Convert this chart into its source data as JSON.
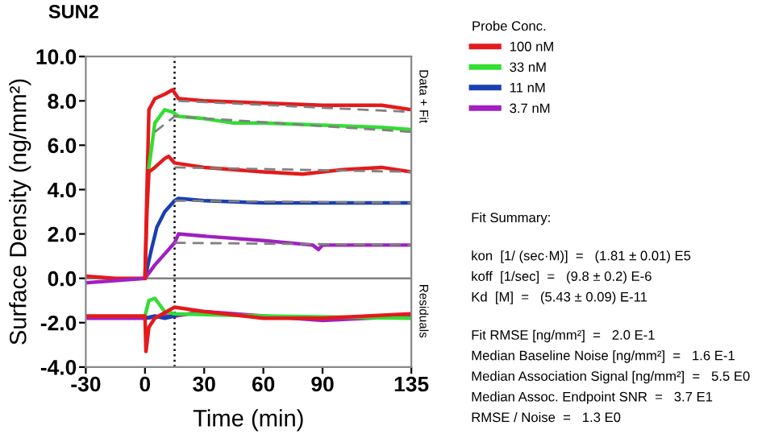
{
  "chart_data": {
    "type": "line",
    "title": "SUN2",
    "xlabel": "Time (min)",
    "ylabel": "Surface Density (ng/mm²)",
    "legend_title": "Probe Conc.",
    "legend": "right",
    "xlim": [
      -30,
      135
    ],
    "xticks": [
      -30,
      0,
      30,
      60,
      90,
      135
    ],
    "ylim": [
      -4,
      10
    ],
    "yticks": [
      {
        "value": -4,
        "label": "-4.0"
      },
      {
        "value": -2,
        "label": "-2.0"
      },
      {
        "value": 0,
        "label": "0.0"
      },
      {
        "value": 2,
        "label": "2.0"
      },
      {
        "value": 4,
        "label": "4.0"
      },
      {
        "value": 6,
        "label": "6.0"
      },
      {
        "value": 8,
        "label": "8.0"
      },
      {
        "value": 10,
        "label": "10.0"
      }
    ],
    "grid": false,
    "marker": "none",
    "ref_lines": [
      {
        "axis": "x",
        "value": 15,
        "color": "#000000",
        "line_style": "dotted"
      },
      {
        "axis": "y",
        "value": 0,
        "color": "#808080",
        "line_style": "solid"
      }
    ],
    "series": [
      {
        "name": "100 nM",
        "color": "#e41a1c",
        "x": [
          -30,
          -15,
          0,
          1,
          2,
          5,
          10,
          14,
          17,
          30,
          60,
          90,
          120,
          135
        ],
        "values": [
          0.1,
          0.0,
          0.0,
          4.0,
          7.6,
          8.1,
          8.3,
          8.5,
          8.1,
          8.0,
          7.9,
          7.8,
          7.8,
          7.6
        ]
      },
      {
        "name": "33 nM",
        "color": "#33dd33",
        "x": [
          2,
          5,
          10,
          14,
          17,
          30,
          45,
          60,
          90,
          120,
          135
        ],
        "values": [
          5.0,
          7.0,
          7.6,
          7.5,
          7.3,
          7.2,
          7.0,
          7.0,
          6.9,
          6.8,
          6.7
        ]
      },
      {
        "name": "11 nM",
        "color": "#1a3fb0",
        "x": [
          0,
          3,
          6,
          10,
          15,
          17,
          30,
          60,
          90,
          135
        ],
        "values": [
          0.0,
          1.2,
          2.3,
          3.0,
          3.5,
          3.6,
          3.5,
          3.4,
          3.4,
          3.4
        ]
      },
      {
        "name": "3.7 nM",
        "color": "#a020c0",
        "x": [
          -30,
          0,
          5,
          10,
          15,
          17,
          30,
          60,
          85,
          88,
          90,
          135
        ],
        "values": [
          -0.2,
          0.0,
          0.6,
          1.1,
          1.6,
          2.0,
          1.9,
          1.7,
          1.5,
          1.3,
          1.5,
          1.5
        ]
      },
      {
        "color": "#e41a1c",
        "x": [
          0,
          1,
          2,
          5,
          10,
          12,
          15,
          30,
          60,
          80,
          100,
          120,
          135
        ],
        "values": [
          0.0,
          3.0,
          4.8,
          5.0,
          5.4,
          5.5,
          5.2,
          5.0,
          4.8,
          4.7,
          4.9,
          5.0,
          4.8
        ]
      },
      {
        "color": "#808080",
        "line_style": "dashed",
        "x": [
          17,
          135
        ],
        "values": [
          8.0,
          7.5
        ]
      },
      {
        "color": "#808080",
        "line_style": "dashed",
        "x": [
          5,
          15,
          135
        ],
        "values": [
          6.6,
          7.3,
          6.6
        ]
      },
      {
        "color": "#808080",
        "line_style": "dashed",
        "x": [
          15,
          135
        ],
        "values": [
          5.0,
          4.8
        ]
      },
      {
        "color": "#808080",
        "line_style": "dashed",
        "x": [
          15,
          135
        ],
        "values": [
          3.5,
          3.4
        ]
      },
      {
        "color": "#808080",
        "line_style": "dashed",
        "x": [
          15,
          135
        ],
        "values": [
          1.6,
          1.5
        ]
      },
      {
        "color": "#a020c0",
        "x": [
          -30,
          0,
          10,
          15,
          30,
          90,
          135
        ],
        "values": [
          -1.8,
          -1.8,
          -1.7,
          -1.7,
          -1.5,
          -1.9,
          -1.7
        ]
      },
      {
        "color": "#1a3fb0",
        "x": [
          0,
          5,
          10,
          15
        ],
        "values": [
          -1.8,
          -1.7,
          -1.8,
          -1.7
        ]
      },
      {
        "color": "#33dd33",
        "x": [
          0,
          2,
          5,
          10,
          15,
          60,
          135
        ],
        "values": [
          -1.7,
          -1.0,
          -0.9,
          -1.5,
          -1.6,
          -1.7,
          -1.8
        ]
      },
      {
        "color": "#e41a1c",
        "x": [
          -30,
          0,
          0.5,
          2,
          5,
          15,
          30,
          60,
          90,
          135
        ],
        "values": [
          -1.7,
          -1.7,
          -3.3,
          -2.2,
          -1.8,
          -1.3,
          -1.5,
          -1.8,
          -1.8,
          -1.6
        ]
      }
    ],
    "annotations": [
      "Data + Fit",
      "Residuals",
      "Fit Summary:",
      "kon  [1/ (sec·M)]  =   (1.81 ± 0.01) E5",
      "koff  [1/sec]  =   (9.8 ± 0.2) E-6",
      "Kd  [M]  =   (5.43 ± 0.09) E-11",
      "Fit RMSE [ng/mm²]  =   2.0 E-1",
      "Median Baseline Noise [ng/mm²]  =   1.6 E-1",
      "Median Association Signal [ng/mm²]  =   5.5 E0",
      "Median Assoc. Endpoint SNR  =   3.7 E1",
      "RMSE / Noise  =   1.3 E0"
    ]
  }
}
